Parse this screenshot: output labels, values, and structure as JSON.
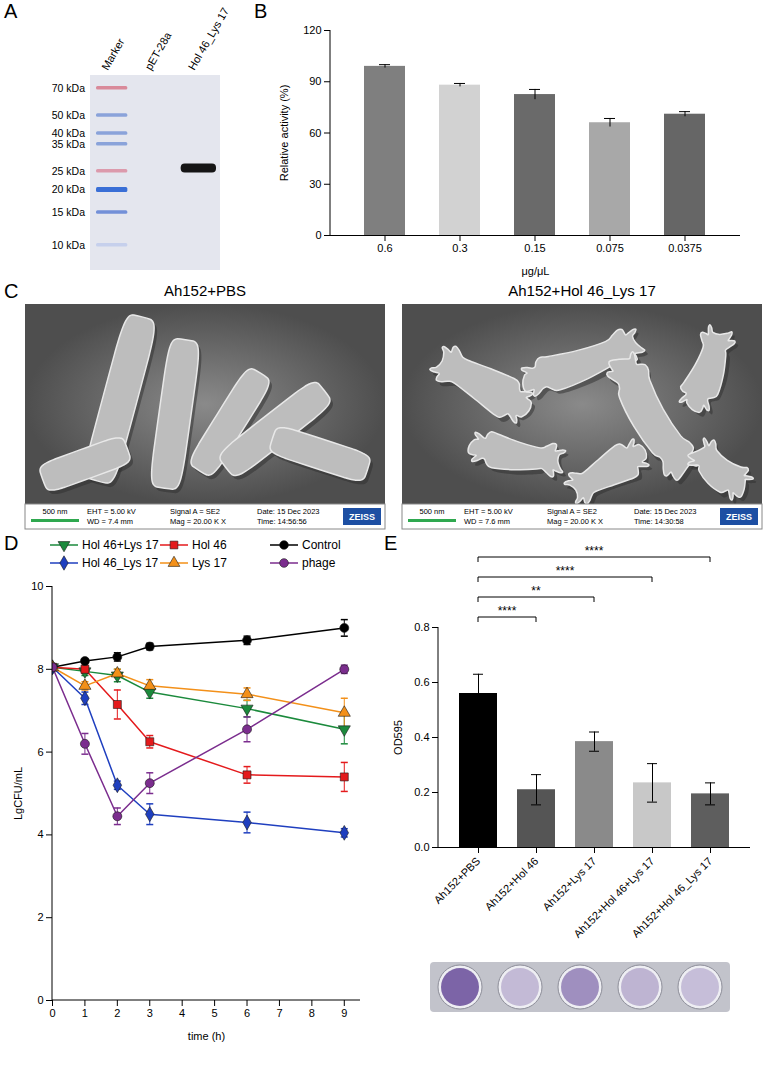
{
  "gel": {
    "panel_label": "A",
    "lanes": [
      "Marker",
      "pET-28a",
      "Hol 46_Lys 17"
    ],
    "marker_bands": [
      {
        "value": 70,
        "label": "70 kDa"
      },
      {
        "value": 50,
        "label": "50 kDa"
      },
      {
        "value": 40,
        "label": "40 kDa"
      },
      {
        "value": 35,
        "label": "35 kDa"
      },
      {
        "value": 25,
        "label": "25 kDa"
      },
      {
        "value": 20,
        "label": "20 kDa"
      },
      {
        "value": 15,
        "label": "15 kDa"
      },
      {
        "value": 10,
        "label": "10 kDa"
      }
    ],
    "sample_bands": [
      {
        "lane": "Hol 46_Lys 17",
        "kda": 26
      }
    ]
  },
  "chart_data": [
    {
      "panel_label": "B",
      "type": "bar",
      "categories": [
        "0.6",
        "0.3",
        "0.15",
        "0.075",
        "0.0375"
      ],
      "values": [
        99,
        88,
        82.5,
        66,
        71
      ],
      "errors": [
        1,
        1,
        3,
        2.5,
        1.5
      ],
      "colors": [
        "#7f7f7f",
        "#d2d2d2",
        "#6a6a6a",
        "#a8a8a8",
        "#666666"
      ],
      "xlabel": "μg/μL",
      "ylabel": "Relative activity (%)",
      "ylim": [
        0,
        120
      ],
      "yticks": [
        0,
        30,
        60,
        90,
        120
      ]
    },
    {
      "panel_label": "D",
      "type": "line",
      "x": [
        0,
        1,
        2,
        3,
        6,
        9
      ],
      "xlabel": "time (h)",
      "ylabel": "LgCFU/mL",
      "xlim": [
        0,
        9.5
      ],
      "xticks": [
        0,
        1,
        2,
        3,
        4,
        5,
        6,
        7,
        8,
        9
      ],
      "ylim": [
        0,
        10
      ],
      "yticks": [
        0,
        2,
        4,
        6,
        8,
        10
      ],
      "legend": "top",
      "series": [
        {
          "name": "Hol 46+Lys 17",
          "color": "#1b8a3c",
          "marker": "triangle-down",
          "values": [
            8.05,
            7.95,
            7.85,
            7.45,
            7.05,
            6.55
          ],
          "errors": [
            0.05,
            0.1,
            0.15,
            0.15,
            0.2,
            0.35
          ]
        },
        {
          "name": "Hol 46",
          "color": "#e41a1c",
          "marker": "square",
          "values": [
            8.05,
            8.0,
            7.15,
            6.25,
            5.45,
            5.4
          ],
          "errors": [
            0.05,
            0.1,
            0.35,
            0.15,
            0.2,
            0.35
          ]
        },
        {
          "name": "Control",
          "color": "#000000",
          "marker": "circle",
          "values": [
            8.05,
            8.2,
            8.3,
            8.55,
            8.7,
            9.0
          ],
          "errors": [
            0.05,
            0.05,
            0.1,
            0.08,
            0.1,
            0.2
          ]
        },
        {
          "name": "Hol 46_Lys 17",
          "color": "#1f3fbf",
          "marker": "diamond",
          "values": [
            8.05,
            7.3,
            5.2,
            4.5,
            4.3,
            4.05
          ],
          "errors": [
            0.05,
            0.15,
            0.1,
            0.25,
            0.25,
            0.1
          ]
        },
        {
          "name": "Lys 17",
          "color": "#f39019",
          "marker": "triangle",
          "values": [
            8.05,
            7.6,
            7.9,
            7.6,
            7.4,
            6.95
          ],
          "errors": [
            0.05,
            0.1,
            0.1,
            0.15,
            0.15,
            0.35
          ]
        },
        {
          "name": "phage",
          "color": "#7b2d8e",
          "marker": "circle",
          "values": [
            8.05,
            6.2,
            4.45,
            5.25,
            6.55,
            8.0
          ],
          "errors": [
            0.05,
            0.25,
            0.2,
            0.25,
            0.3,
            0.1
          ]
        }
      ]
    },
    {
      "panel_label": "E",
      "type": "bar",
      "categories": [
        "Ah152+PBS",
        "Ah152+Hol 46",
        "Ah152+Lys 17",
        "Ah152+Hol 46+Lys 17",
        "Ah152+Hol 46_Lys 17"
      ],
      "values": [
        0.56,
        0.21,
        0.385,
        0.235,
        0.195
      ],
      "errors": [
        0.07,
        0.055,
        0.035,
        0.07,
        0.04
      ],
      "colors": [
        "#000000",
        "#555555",
        "#8a8a8a",
        "#c8c8c8",
        "#5e5e5e"
      ],
      "ylabel": "OD595",
      "ylim": [
        0,
        0.8
      ],
      "yticks": [
        {
          "value": 0,
          "label": "0.0"
        },
        0.2,
        0.4,
        0.6,
        0.8
      ],
      "comparisons": [
        {
          "from": "Ah152+PBS",
          "to": "Ah152+Hol 46",
          "label": "****"
        },
        {
          "from": "Ah152+PBS",
          "to": "Ah152+Lys 17",
          "label": "**"
        },
        {
          "from": "Ah152+PBS",
          "to": "Ah152+Hol 46+Lys 17",
          "label": "****"
        },
        {
          "from": "Ah152+PBS",
          "to": "Ah152+Hol 46_Lys 17",
          "label": "****"
        }
      ]
    }
  ],
  "sem": {
    "panel_label": "C",
    "images": [
      {
        "title": "Ah152+PBS",
        "scale_bar": "500 nm",
        "info": [
          "EHT = 5.00 kV",
          "WD = 7.4 mm",
          "Signal A = SE2",
          "Mag = 20.00 K X",
          "Date: 15 Dec 2023",
          "Time: 14:56:56"
        ],
        "brand": "ZEISS"
      },
      {
        "title": "Ah152+Hol 46_Lys 17",
        "scale_bar": "500 nm",
        "info": [
          "EHT = 5.00 kV",
          "WD = 7.6 mm",
          "Signal A = SE2",
          "Mag = 20.00 K X",
          "Date: 15 Dec 2023",
          "Time: 14:30:58"
        ],
        "brand": "ZEISS"
      }
    ]
  }
}
